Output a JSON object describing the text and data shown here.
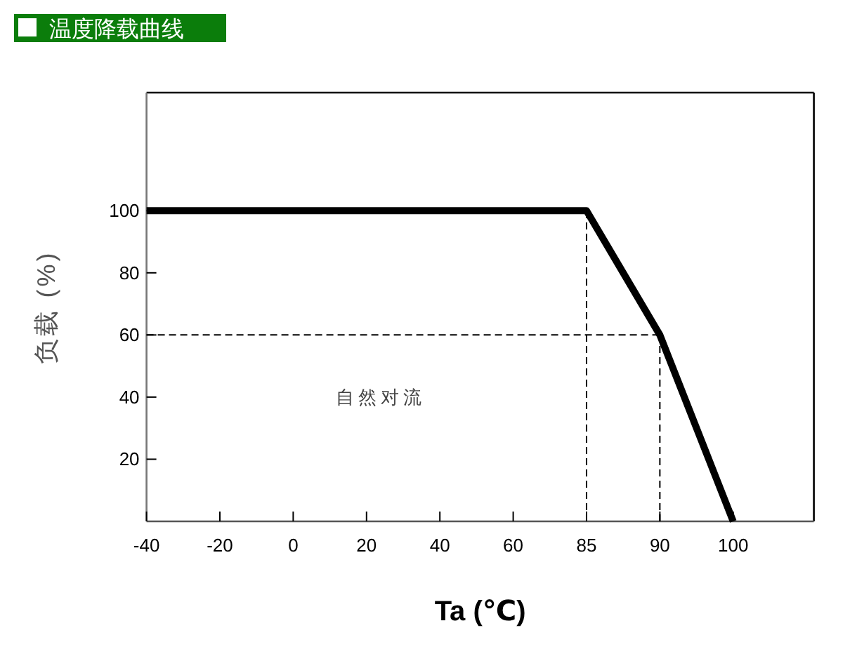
{
  "chart_data": {
    "type": "line",
    "title": "温度降载曲线",
    "xlabel": "Ta (℃)",
    "ylabel": "负载 (%)",
    "annotations": [
      "自然对流"
    ],
    "categories": [
      "-40",
      "-20",
      "0",
      "20",
      "40",
      "60",
      "85",
      "90",
      "100"
    ],
    "series": [
      {
        "color": "#000000",
        "values": [
          100,
          100,
          100,
          100,
          100,
          100,
          100,
          60,
          0
        ]
      }
    ],
    "ref_lines": [
      {
        "axis": "x",
        "value": "85",
        "color": "#000000",
        "line_style": "dashed"
      },
      {
        "axis": "y",
        "value": 60,
        "color": "#000000",
        "line_style": "dashed"
      },
      {
        "axis": "x",
        "value": "90",
        "color": "#000000",
        "line_style": "dashed"
      }
    ],
    "ylim": [
      0,
      138
    ],
    "yticks": [
      20,
      40,
      60,
      80,
      100
    ],
    "line_style": "solid"
  }
}
